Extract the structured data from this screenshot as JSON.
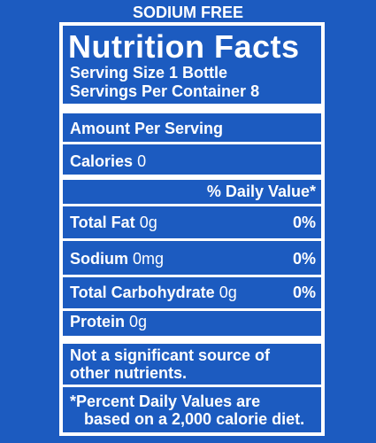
{
  "top_label": "SODIUM FREE",
  "label": {
    "title": "Nutrition Facts",
    "serving_size": "Serving Size 1 Bottle",
    "servings": "Servings Per Container 8",
    "amount_per_serving": "Amount Per Serving",
    "calories": {
      "label": "Calories",
      "amount": "0"
    },
    "daily_value_header": "% Daily Value*",
    "rows": [
      {
        "label": "Total Fat",
        "amount": "0g",
        "dv": "0%"
      },
      {
        "label": "Sodium",
        "amount": "0mg",
        "dv": "0%"
      },
      {
        "label": "Total Carbohydrate",
        "amount": "0g",
        "dv": "0%"
      }
    ],
    "protein": {
      "label": "Protein",
      "amount": "0g"
    },
    "note": [
      "Not a significant source of",
      "other nutrients."
    ],
    "footnote": [
      "*Percent Daily Values are",
      "based on a 2,000 calorie diet."
    ]
  }
}
